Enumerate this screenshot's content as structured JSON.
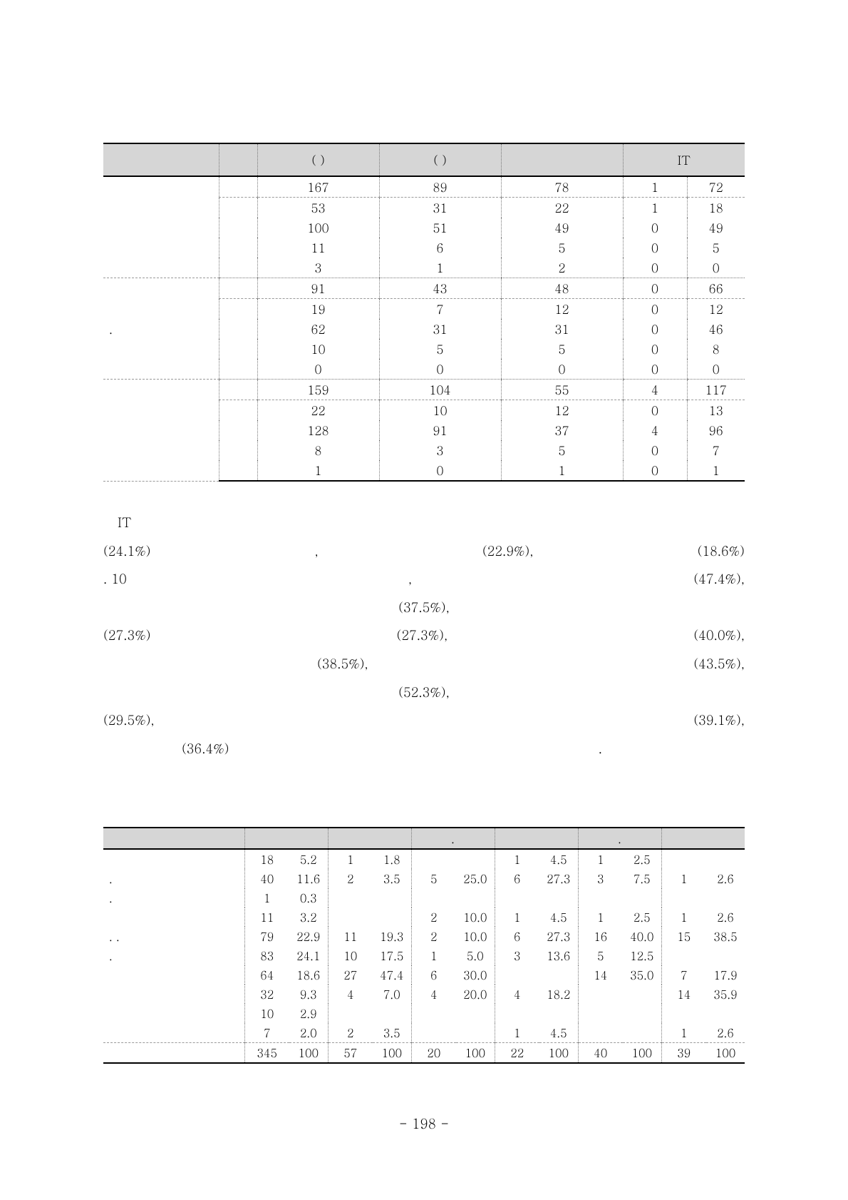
{
  "page_number": "- 198 -",
  "table1": {
    "headers": [
      "",
      "",
      "(               )",
      "(               )",
      "",
      "IT"
    ],
    "col_widths_pct": [
      18,
      6,
      19,
      19,
      19,
      10,
      9
    ],
    "header_bg": "#d6d6d6",
    "border_color": "#000000",
    "dotted_color": "#777777",
    "font_size_pt": 13,
    "groups": [
      {
        "summary": [
          "167",
          "89",
          "78",
          "1",
          "72"
        ],
        "rows": [
          [
            "53",
            "31",
            "22",
            "1",
            "18"
          ],
          [
            "100",
            "51",
            "49",
            "0",
            "49"
          ],
          [
            "11",
            "6",
            "5",
            "0",
            "5"
          ],
          [
            "3",
            "1",
            "2",
            "0",
            "0"
          ]
        ]
      },
      {
        "summary": [
          "91",
          "43",
          "48",
          "0",
          "66"
        ],
        "left_marker": ".",
        "rows": [
          [
            "19",
            "7",
            "12",
            "0",
            "12"
          ],
          [
            "62",
            "31",
            "31",
            "0",
            "46"
          ],
          [
            "10",
            "5",
            "5",
            "0",
            "8"
          ],
          [
            "0",
            "0",
            "0",
            "0",
            "0"
          ]
        ]
      },
      {
        "summary": [
          "159",
          "104",
          "55",
          "4",
          "117"
        ],
        "rows": [
          [
            "22",
            "10",
            "12",
            "0",
            "13"
          ],
          [
            "128",
            "91",
            "37",
            "4",
            "96"
          ],
          [
            "8",
            "3",
            "5",
            "0",
            "7"
          ],
          [
            "1",
            "0",
            "1",
            "0",
            "1"
          ]
        ]
      }
    ]
  },
  "paragraph": {
    "it_label": "IT",
    "lines": [
      {
        "cells": [
          "(24.1%)",
          ",",
          "(22.9%),",
          "(18.6%)"
        ]
      },
      {
        "cells": [
          ". 10",
          ",",
          "(47.4%),"
        ]
      },
      {
        "cells": [
          "(37.5%),"
        ],
        "center": true
      },
      {
        "cells": [
          "(27.3%)",
          "(27.3%),",
          "(40.0%),"
        ]
      },
      {
        "cells": [
          "(38.5%),",
          "(43.5%),"
        ],
        "right_heavy": true
      },
      {
        "cells": [
          "(52.3%),"
        ],
        "center": true
      },
      {
        "cells": [
          "(29.5%),",
          "(39.1%),"
        ]
      },
      {
        "cells": [
          "(36.4%)",
          "."
        ],
        "indent": true
      }
    ]
  },
  "table2": {
    "header_cols": 7,
    "header_labels": [
      "",
      "",
      "",
      ".",
      "",
      ".",
      ""
    ],
    "col_widths_pct": [
      22,
      7,
      6,
      7,
      6,
      7,
      6,
      7,
      6,
      7,
      6,
      7,
      6
    ],
    "left_markers": [
      "",
      ".",
      ".",
      "",
      ".   .",
      ".",
      "",
      "",
      "",
      ""
    ],
    "rows": [
      [
        "18",
        "5.2",
        "1",
        "1.8",
        "",
        "",
        "1",
        "4.5",
        "1",
        "2.5",
        "",
        ""
      ],
      [
        "40",
        "11.6",
        "2",
        "3.5",
        "5",
        "25.0",
        "6",
        "27.3",
        "3",
        "7.5",
        "1",
        "2.6"
      ],
      [
        "1",
        "0.3",
        "",
        "",
        "",
        "",
        "",
        "",
        "",
        "",
        "",
        ""
      ],
      [
        "11",
        "3.2",
        "",
        "",
        "2",
        "10.0",
        "1",
        "4.5",
        "1",
        "2.5",
        "1",
        "2.6"
      ],
      [
        "79",
        "22.9",
        "11",
        "19.3",
        "2",
        "10.0",
        "6",
        "27.3",
        "16",
        "40.0",
        "15",
        "38.5"
      ],
      [
        "83",
        "24.1",
        "10",
        "17.5",
        "1",
        "5.0",
        "3",
        "13.6",
        "5",
        "12.5",
        "",
        ""
      ],
      [
        "64",
        "18.6",
        "27",
        "47.4",
        "6",
        "30.0",
        "",
        "",
        "14",
        "35.0",
        "7",
        "17.9"
      ],
      [
        "32",
        "9.3",
        "4",
        "7.0",
        "4",
        "20.0",
        "4",
        "18.2",
        "",
        "",
        "14",
        "35.9"
      ],
      [
        "10",
        "2.9",
        "",
        "",
        "",
        "",
        "",
        "",
        "",
        "",
        "",
        ""
      ],
      [
        "7",
        "2.0",
        "2",
        "3.5",
        "",
        "",
        "1",
        "4.5",
        "",
        "",
        "1",
        "2.6"
      ]
    ],
    "total": [
      "345",
      "100",
      "57",
      "100",
      "20",
      "100",
      "22",
      "100",
      "40",
      "100",
      "39",
      "100"
    ]
  }
}
